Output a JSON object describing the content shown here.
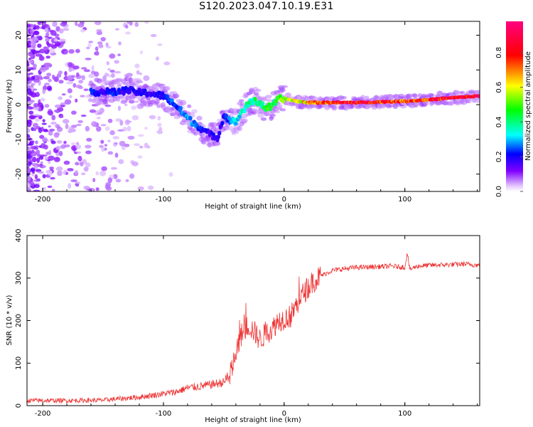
{
  "title": "S120.2023.047.10.19.E31",
  "chart_data": [
    {
      "type": "heatmap",
      "xlabel": "Height of straight line (km)",
      "ylabel": "Frequency (Hz)",
      "xlim": [
        -213,
        162
      ],
      "ylim": [
        -25,
        24
      ],
      "xticks": [
        -200,
        -100,
        0,
        100
      ],
      "yticks": [
        -20,
        -10,
        0,
        10,
        20
      ],
      "grid": false,
      "colorbar": {
        "label": "Normalized spectral amplitude",
        "range": [
          0,
          0.98
        ],
        "ticks": [
          0.0,
          0.2,
          0.4,
          0.6,
          0.8
        ],
        "tick_labels": [
          "0.0",
          "0.2",
          "0.4",
          "0.6",
          "0.8"
        ]
      },
      "ridge": {
        "x": [
          -160,
          -150,
          -140,
          -130,
          -120,
          -110,
          -100,
          -92,
          -85,
          -78,
          -70,
          -62,
          -55,
          -50,
          -45,
          -40,
          -35,
          -30,
          -25,
          -20,
          -15,
          -10,
          -5,
          0,
          10,
          20,
          40,
          60,
          80,
          100,
          120,
          140,
          162
        ],
        "freq": [
          3.5,
          3.8,
          3.5,
          4.2,
          3.5,
          3.2,
          2.5,
          0.5,
          -2.0,
          -4.5,
          -6.5,
          -8.5,
          -9.5,
          -3.0,
          -4.5,
          -5.0,
          -2.0,
          0.0,
          1.2,
          0.5,
          -1.0,
          -0.5,
          1.5,
          1.8,
          1.0,
          0.6,
          0.6,
          0.6,
          0.8,
          1.0,
          1.4,
          2.0,
          2.5
        ],
        "amp": [
          0.25,
          0.2,
          0.25,
          0.2,
          0.22,
          0.2,
          0.22,
          0.28,
          0.3,
          0.32,
          0.25,
          0.2,
          0.18,
          0.22,
          0.3,
          0.35,
          0.4,
          0.42,
          0.45,
          0.45,
          0.5,
          0.5,
          0.55,
          0.6,
          0.65,
          0.75,
          0.9,
          0.95,
          0.9,
          0.85,
          0.9,
          0.95,
          0.98
        ]
      }
    },
    {
      "type": "line",
      "xlabel": "Height of straight line (km)",
      "ylabel": "SNR (10 * v/v)",
      "xlim": [
        -213,
        162
      ],
      "ylim": [
        0,
        400
      ],
      "xticks": [
        -200,
        -100,
        0,
        100
      ],
      "yticks": [
        0,
        100,
        200,
        300,
        400
      ],
      "grid": false,
      "color": "#ee3333",
      "series": [
        {
          "x": [
            -213,
            -180,
            -150,
            -120,
            -100,
            -90,
            -80,
            -70,
            -60,
            -50,
            -45,
            -42,
            -38,
            -35,
            -32,
            -30,
            -25,
            -20,
            -15,
            -10,
            -5,
            0,
            5,
            10,
            15,
            20,
            25,
            30,
            40,
            50,
            60,
            80,
            90,
            100,
            102,
            104,
            110,
            120,
            140,
            150,
            162
          ],
          "values": [
            12,
            12,
            13,
            20,
            28,
            32,
            42,
            45,
            50,
            55,
            70,
            100,
            140,
            170,
            180,
            190,
            175,
            155,
            170,
            180,
            200,
            205,
            210,
            235,
            260,
            280,
            295,
            305,
            318,
            322,
            325,
            327,
            328,
            325,
            360,
            320,
            328,
            330,
            332,
            333,
            330
          ]
        }
      ]
    }
  ]
}
